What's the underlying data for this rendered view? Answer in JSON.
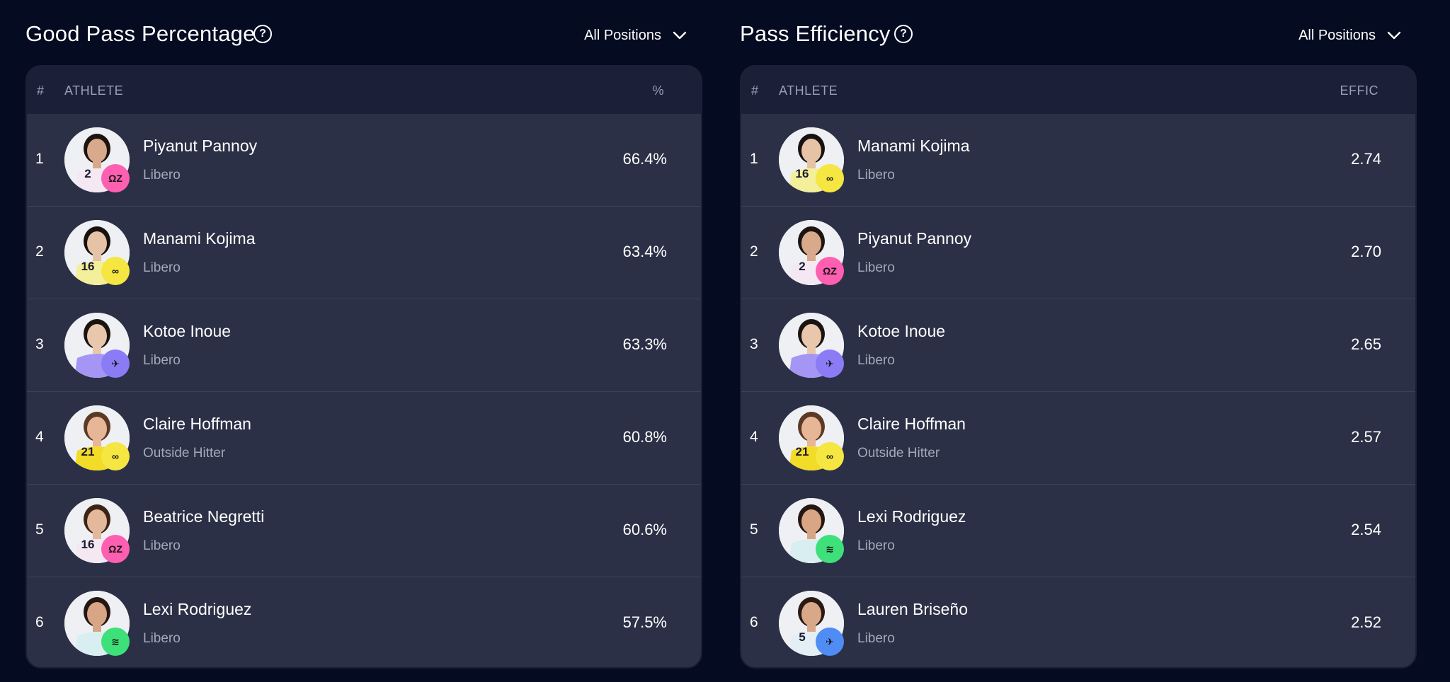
{
  "colors": {
    "background": "#050b21",
    "card": "#2b3046",
    "table_header": "#1b1f38",
    "muted_text": "#a3a8bb",
    "team_pink": "#ff5fb0",
    "team_yellow": "#f5e642",
    "team_purple": "#8b7cf6",
    "team_green": "#3ee07a",
    "team_blue": "#4f8df5"
  },
  "panels": [
    {
      "title": "Good Pass Percentage",
      "help_icon": "question-circle-icon",
      "filter": {
        "label": "All Positions",
        "icon": "chevron-down-icon"
      },
      "columns": {
        "rank": "#",
        "athlete": "ATHLETE",
        "stat": "%"
      },
      "rows": [
        {
          "rank": "1",
          "name": "Piyanut Pannoy",
          "position": "Libero",
          "value": "66.4%",
          "jersey": "2",
          "team_color": "#ff5fb0",
          "team_mark": "ΩZ",
          "jersey_color": "#f4e9f3",
          "skin": "#d8a98a",
          "hair": "#1d1410"
        },
        {
          "rank": "2",
          "name": "Manami Kojima",
          "position": "Libero",
          "value": "63.4%",
          "jersey": "16",
          "team_color": "#f5e642",
          "team_mark": "∞",
          "jersey_color": "#f3ef9a",
          "skin": "#e6c2a6",
          "hair": "#171210"
        },
        {
          "rank": "3",
          "name": "Kotoe Inoue",
          "position": "Libero",
          "value": "63.3%",
          "jersey": "",
          "team_color": "#8b7cf6",
          "team_mark": "✈",
          "jersey_color": "#a595f4",
          "skin": "#e9c7ac",
          "hair": "#1a1411"
        },
        {
          "rank": "4",
          "name": "Claire Hoffman",
          "position": "Outside Hitter",
          "value": "60.8%",
          "jersey": "21",
          "team_color": "#f5e642",
          "team_mark": "∞",
          "jersey_color": "#f2dc27",
          "skin": "#e6b697",
          "hair": "#5a3a25"
        },
        {
          "rank": "5",
          "name": "Beatrice Negretti",
          "position": "Libero",
          "value": "60.6%",
          "jersey": "16",
          "team_color": "#ff5fb0",
          "team_mark": "ΩZ",
          "jersey_color": "#f4e9f3",
          "skin": "#e4b89a",
          "hair": "#3b2417"
        },
        {
          "rank": "6",
          "name": "Lexi Rodriguez",
          "position": "Libero",
          "value": "57.5%",
          "jersey": "",
          "team_color": "#3ee07a",
          "team_mark": "≋",
          "jersey_color": "#d9eef0",
          "skin": "#d8a585",
          "hair": "#241612"
        }
      ]
    },
    {
      "title": "Pass Efficiency",
      "help_icon": "question-circle-icon",
      "filter": {
        "label": "All Positions",
        "icon": "chevron-down-icon"
      },
      "columns": {
        "rank": "#",
        "athlete": "ATHLETE",
        "stat": "EFFIC"
      },
      "rows": [
        {
          "rank": "1",
          "name": "Manami Kojima",
          "position": "Libero",
          "value": "2.74",
          "jersey": "16",
          "team_color": "#f5e642",
          "team_mark": "∞",
          "jersey_color": "#f3ef9a",
          "skin": "#e6c2a6",
          "hair": "#171210"
        },
        {
          "rank": "2",
          "name": "Piyanut Pannoy",
          "position": "Libero",
          "value": "2.70",
          "jersey": "2",
          "team_color": "#ff5fb0",
          "team_mark": "ΩZ",
          "jersey_color": "#f4e9f3",
          "skin": "#d8a98a",
          "hair": "#1d1410"
        },
        {
          "rank": "3",
          "name": "Kotoe Inoue",
          "position": "Libero",
          "value": "2.65",
          "jersey": "",
          "team_color": "#8b7cf6",
          "team_mark": "✈",
          "jersey_color": "#a595f4",
          "skin": "#e9c7ac",
          "hair": "#1a1411"
        },
        {
          "rank": "4",
          "name": "Claire Hoffman",
          "position": "Outside Hitter",
          "value": "2.57",
          "jersey": "21",
          "team_color": "#f5e642",
          "team_mark": "∞",
          "jersey_color": "#f2dc27",
          "skin": "#e6b697",
          "hair": "#5a3a25"
        },
        {
          "rank": "5",
          "name": "Lexi Rodriguez",
          "position": "Libero",
          "value": "2.54",
          "jersey": "",
          "team_color": "#3ee07a",
          "team_mark": "≋",
          "jersey_color": "#d9eef0",
          "skin": "#d8a585",
          "hair": "#241612"
        },
        {
          "rank": "6",
          "name": "Lauren Briseño",
          "position": "Libero",
          "value": "2.52",
          "jersey": "5",
          "team_color": "#4f8df5",
          "team_mark": "✈",
          "jersey_color": "#e3eef5",
          "skin": "#d9a888",
          "hair": "#2a1a14"
        }
      ]
    }
  ]
}
